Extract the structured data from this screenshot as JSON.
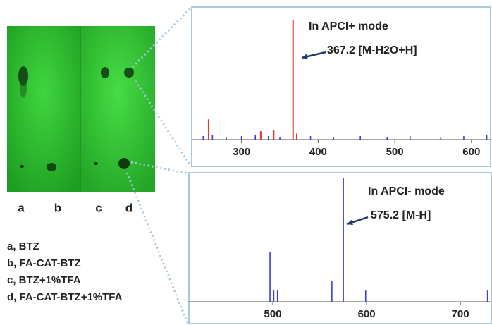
{
  "tlc": {
    "lanes": [
      "a",
      "b",
      "c",
      "d"
    ],
    "legend": [
      "a, BTZ",
      "b, FA-CAT-BTZ",
      "c, BTZ+1%TFA",
      "d, FA-CAT-BTZ+1%TFA"
    ]
  },
  "chart_data": [
    {
      "type": "stem",
      "title": "In APCI+ mode",
      "annotation": "367.2 [M-H2O+H]",
      "xlim": [
        235,
        625
      ],
      "xticks": [
        300,
        400,
        500,
        600
      ],
      "ylim": [
        0,
        105
      ],
      "series": [
        {
          "color": "#e8332a",
          "x": [
            257,
            325,
            342,
            367.2,
            372
          ],
          "values": [
            17,
            7,
            8,
            100,
            5
          ]
        },
        {
          "color": "#3b3bd6",
          "x": [
            250,
            262,
            280,
            300,
            318,
            335,
            350,
            390,
            420,
            455,
            490,
            520,
            560,
            590,
            620
          ],
          "values": [
            3,
            4,
            2,
            3,
            4,
            3,
            2,
            3,
            2,
            3,
            2,
            3,
            2,
            3,
            4
          ]
        }
      ]
    },
    {
      "type": "stem",
      "title": "In APCI- mode",
      "annotation": "575.2 [M-H]",
      "xlim": [
        410.5,
        733
      ],
      "xticks": [
        500,
        600,
        700
      ],
      "ylim": [
        0,
        100
      ],
      "series": [
        {
          "color": "#3b3bd6",
          "x": [
            497,
            501,
            505,
            563,
            575.2,
            599,
            729
          ],
          "values": [
            40,
            9,
            9,
            17,
            100,
            9,
            9
          ]
        }
      ]
    }
  ]
}
